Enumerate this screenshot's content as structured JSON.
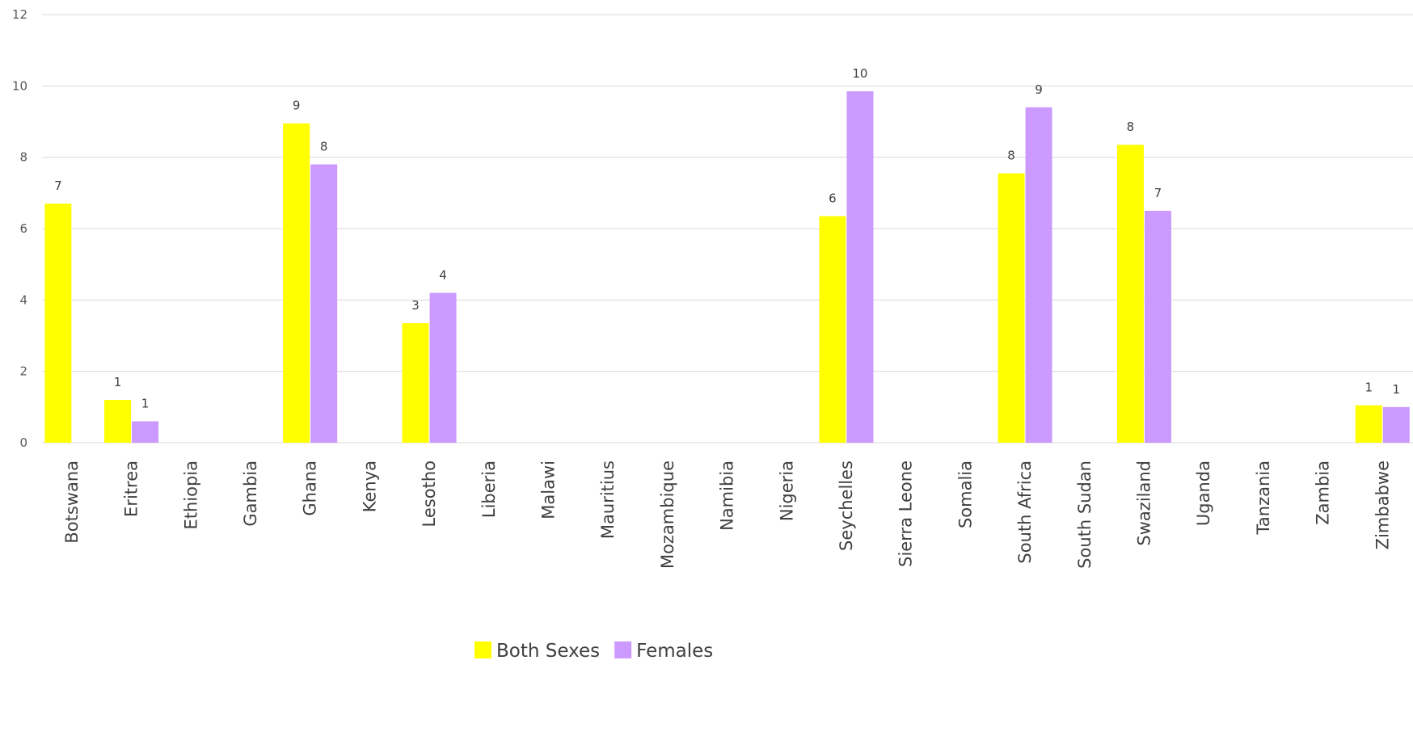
{
  "chart_data": {
    "type": "bar",
    "categories": [
      "Botswana",
      "Eritrea",
      "Ethiopia",
      "Gambia",
      "Ghana",
      "Kenya",
      "Lesotho",
      "Liberia",
      "Malawi",
      "Mauritius",
      "Mozambique",
      "Namibia",
      "Nigeria",
      "Seychelles",
      "Sierra Leone",
      "Somalia",
      "South Africa",
      "South Sudan",
      "Swaziland",
      "Uganda",
      "Tanzania",
      "Zambia",
      "Zimbabwe"
    ],
    "series": [
      {
        "name": "Both Sexes",
        "color": "#ffff00",
        "values": [
          6.7,
          1.2,
          null,
          null,
          8.95,
          null,
          3.35,
          null,
          null,
          null,
          null,
          null,
          null,
          6.35,
          null,
          null,
          7.55,
          null,
          8.35,
          null,
          null,
          null,
          1.05
        ],
        "labels": [
          "7",
          "1",
          "",
          "",
          "9",
          "",
          "3",
          "",
          "",
          "",
          "",
          "",
          "",
          "6",
          "",
          "",
          "8",
          "",
          "8",
          "",
          "",
          "",
          "1"
        ]
      },
      {
        "name": "Females",
        "color": "#cc99ff",
        "values": [
          null,
          0.6,
          null,
          null,
          7.8,
          null,
          4.2,
          null,
          null,
          null,
          null,
          null,
          null,
          9.85,
          null,
          null,
          9.4,
          null,
          6.5,
          null,
          null,
          null,
          1.0
        ],
        "labels": [
          "",
          "1",
          "",
          "",
          "8",
          "",
          "4",
          "",
          "",
          "",
          "",
          "",
          "",
          "10",
          "",
          "",
          "9",
          "",
          "7",
          "",
          "",
          "",
          "1"
        ]
      }
    ],
    "ylim": [
      0,
      12
    ],
    "yticks": [
      0,
      2,
      4,
      6,
      8,
      10,
      12
    ],
    "grid": true,
    "legend": "bottom-center"
  }
}
